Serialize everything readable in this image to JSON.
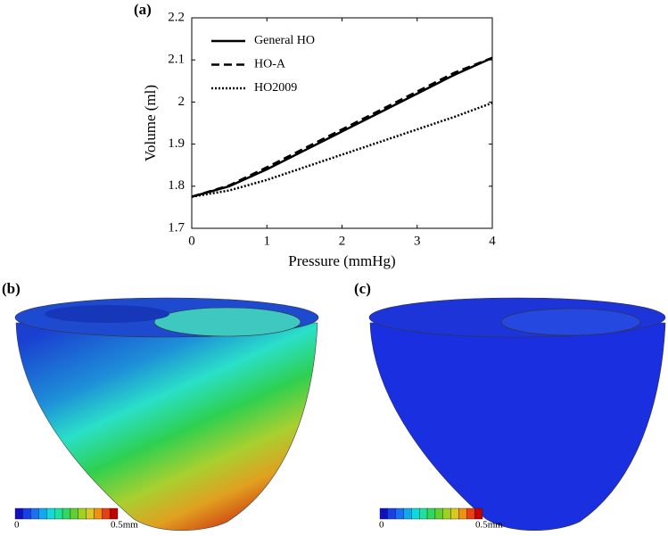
{
  "panels": [
    "(a)",
    "(b)",
    "(c)"
  ],
  "chart_data": {
    "type": "line",
    "x_label": "Pressure (mmHg)",
    "y_label": "Volume (ml)",
    "x": [
      0,
      0.5,
      1,
      1.5,
      2,
      2.5,
      3,
      3.5,
      4
    ],
    "series": [
      {
        "name": "General HO",
        "color": "#000000",
        "dash": "solid",
        "values": [
          1.775,
          1.8,
          1.84,
          1.885,
          1.93,
          1.975,
          2.02,
          2.065,
          2.105
        ]
      },
      {
        "name": "HO-A",
        "color": "#000000",
        "dash": "dashed",
        "values": [
          1.775,
          1.802,
          1.845,
          1.89,
          1.935,
          1.98,
          2.025,
          2.07,
          2.105
        ]
      },
      {
        "name": "HO2009",
        "color": "#000000",
        "dash": "dotted",
        "values": [
          1.775,
          1.79,
          1.815,
          1.845,
          1.875,
          1.905,
          1.935,
          1.965,
          1.998
        ]
      }
    ],
    "xlim": [
      0,
      4
    ],
    "xticks": [
      0,
      1,
      2,
      3,
      4
    ],
    "ylim": [
      1.7,
      2.2
    ],
    "yticks": [
      1.7,
      1.8,
      1.9,
      2,
      2.1,
      2.2
    ],
    "legend": "upper left"
  },
  "colorbars": [
    {
      "min": "0",
      "max": "0.5mm"
    },
    {
      "min": "0",
      "max": "0.5mm"
    }
  ]
}
